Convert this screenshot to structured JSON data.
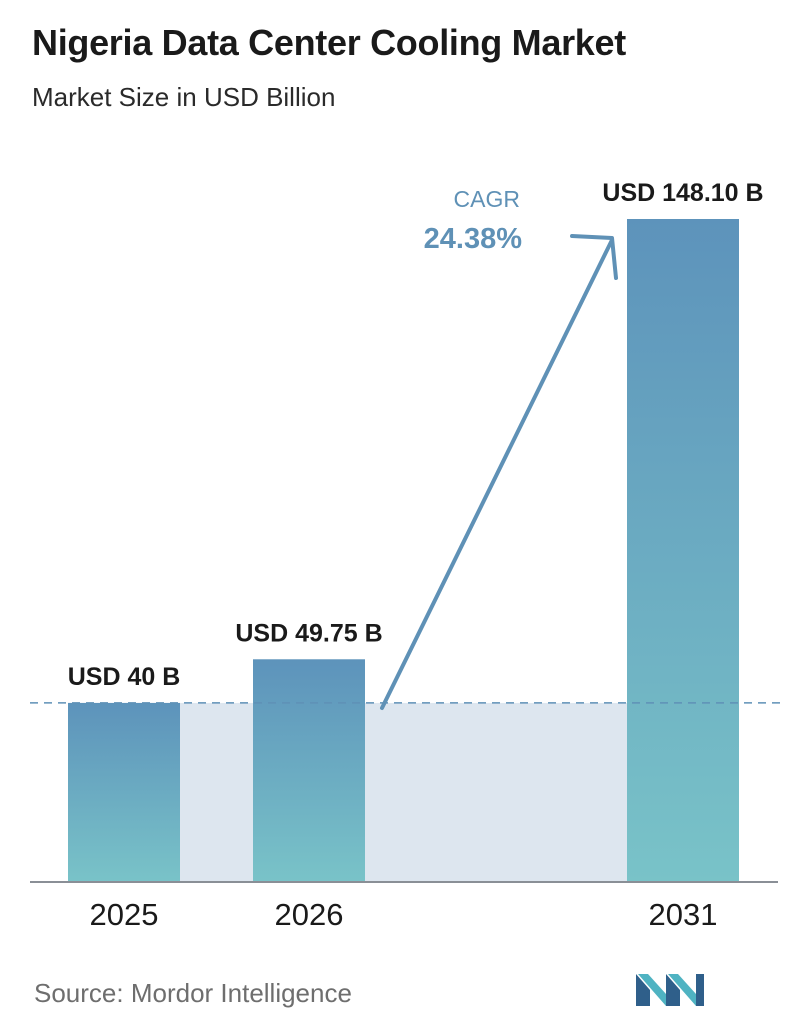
{
  "header": {
    "title": "Nigeria Data Center Cooling Market",
    "subtitle": "Market Size in USD Billion"
  },
  "footer": {
    "source": "Source:  Mordor Intelligence",
    "logo_icon": "mordor-intelligence-logo"
  },
  "colors": {
    "bar_top": "#5d93bb",
    "bar_bottom": "#79c3c8",
    "band": "#dde6ef",
    "arrow": "#5f91b6",
    "cagr_label": "#5f91b6",
    "axis": "#8a8f96",
    "dashed_line": "#5f91b6"
  },
  "chart_data": {
    "type": "bar",
    "categories": [
      "2025",
      "2026",
      "2031"
    ],
    "values": [
      40,
      49.75,
      148.1
    ],
    "data_labels": [
      "USD 40 B",
      "USD 49.75 B",
      "USD 148.10 B"
    ],
    "title": "Nigeria Data Center Cooling Market",
    "subtitle": "Market Size in USD Billion",
    "xlabel": "",
    "ylabel": "",
    "ylim": [
      0,
      160
    ],
    "grid": false,
    "legend": "none",
    "annotation": {
      "label": "CAGR",
      "value": "24.38%",
      "from": "2026",
      "to": "2031"
    },
    "reference_line": {
      "style": "dashed",
      "value": 40
    }
  }
}
